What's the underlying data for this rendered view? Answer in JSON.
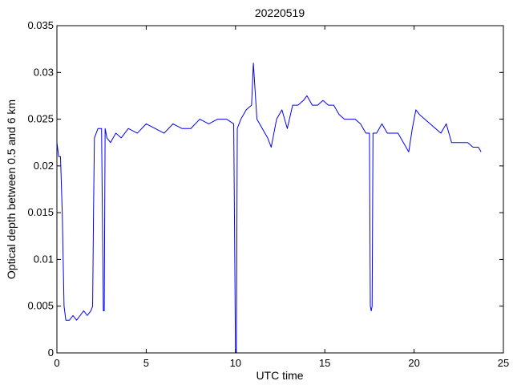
{
  "chart_data": {
    "type": "line",
    "title": "20220519",
    "xlabel": "UTC time",
    "ylabel": "Optical depth between 0.5 and 6 km",
    "xlim": [
      0,
      25
    ],
    "ylim": [
      0,
      0.035
    ],
    "xticks": [
      0,
      5,
      10,
      15,
      20,
      25
    ],
    "xtick_labels": [
      "0",
      "5",
      "10",
      "15",
      "20",
      "25"
    ],
    "yticks": [
      0,
      0.005,
      0.01,
      0.015,
      0.02,
      0.025,
      0.03,
      0.035
    ],
    "ytick_labels": [
      "0",
      "0.005",
      "0.01",
      "0.015",
      "0.02",
      "0.025",
      "0.03",
      "0.035"
    ],
    "grid": false,
    "legend": "none",
    "series_color": "#0000ff",
    "series": [
      {
        "x": [
          0.0,
          0.1,
          0.2,
          0.3,
          0.4,
          0.5,
          0.7,
          0.9,
          1.1,
          1.3,
          1.5,
          1.7,
          1.9,
          2.0,
          2.05,
          2.1,
          2.3,
          2.5,
          2.6,
          2.65,
          2.7,
          2.8,
          3.0,
          3.3,
          3.6,
          4.0,
          4.5,
          5.0,
          5.5,
          6.0,
          6.5,
          7.0,
          7.5,
          8.0,
          8.5,
          9.0,
          9.5,
          9.9,
          10.0,
          10.05,
          10.1,
          10.3,
          10.6,
          10.9,
          11.0,
          11.2,
          11.5,
          11.8,
          12.0,
          12.3,
          12.6,
          12.9,
          13.2,
          13.5,
          13.8,
          14.0,
          14.3,
          14.6,
          14.9,
          15.2,
          15.5,
          15.8,
          16.1,
          16.4,
          16.7,
          17.0,
          17.3,
          17.5,
          17.55,
          17.6,
          17.65,
          17.7,
          17.9,
          18.2,
          18.5,
          18.8,
          19.1,
          19.4,
          19.7,
          19.9,
          20.1,
          20.3,
          20.6,
          20.9,
          21.2,
          21.5,
          21.8,
          22.1,
          22.4,
          22.7,
          23.0,
          23.3,
          23.6,
          23.75
        ],
        "y": [
          0.0225,
          0.021,
          0.021,
          0.015,
          0.005,
          0.0035,
          0.0035,
          0.004,
          0.0035,
          0.004,
          0.0045,
          0.004,
          0.0045,
          0.005,
          0.015,
          0.023,
          0.024,
          0.024,
          0.0045,
          0.0045,
          0.024,
          0.023,
          0.0225,
          0.0235,
          0.023,
          0.024,
          0.0235,
          0.0245,
          0.024,
          0.0235,
          0.0245,
          0.024,
          0.024,
          0.025,
          0.0245,
          0.025,
          0.025,
          0.0245,
          0.0,
          0.0,
          0.024,
          0.025,
          0.026,
          0.0265,
          0.031,
          0.025,
          0.024,
          0.023,
          0.022,
          0.025,
          0.026,
          0.024,
          0.0265,
          0.0265,
          0.027,
          0.0275,
          0.0265,
          0.0265,
          0.027,
          0.0265,
          0.0265,
          0.0255,
          0.025,
          0.025,
          0.025,
          0.0245,
          0.0235,
          0.0235,
          0.005,
          0.0045,
          0.005,
          0.0235,
          0.0235,
          0.0245,
          0.0235,
          0.0235,
          0.0235,
          0.0225,
          0.0215,
          0.024,
          0.026,
          0.0255,
          0.025,
          0.0245,
          0.024,
          0.0235,
          0.0245,
          0.0225,
          0.0225,
          0.0225,
          0.0225,
          0.022,
          0.022,
          0.0215
        ]
      }
    ]
  }
}
